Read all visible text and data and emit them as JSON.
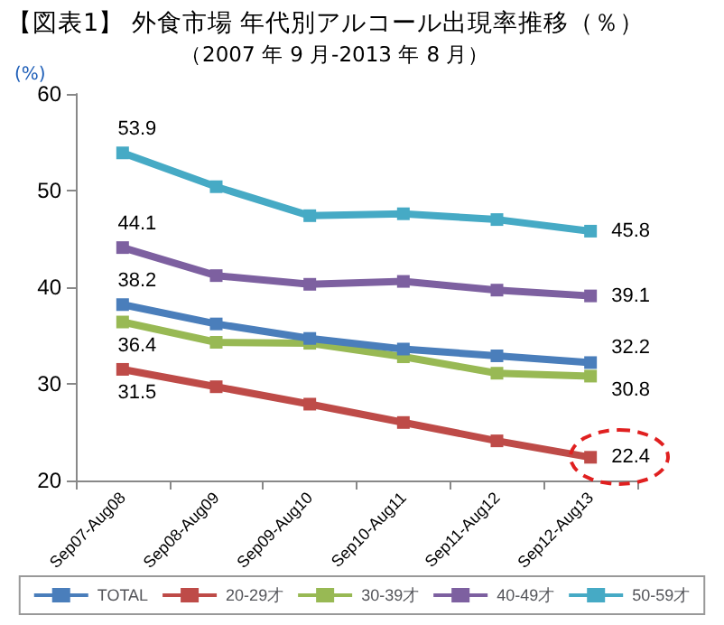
{
  "chart_data": {
    "type": "line",
    "title": "【図表1】 外食市場 年代別アルコール出現率推移（％）",
    "subtitle": "（2007 年 9 月-2013 年 8 月）",
    "ylabel": "(%)",
    "categories": [
      "Sep07-Aug08",
      "Sep08-Aug09",
      "Sep09-Aug10",
      "Sep10-Aug11",
      "Sep11-Aug12",
      "Sep12-Aug13"
    ],
    "series": [
      {
        "name": "TOTAL",
        "color": "#4a7ebb",
        "values": [
          38.2,
          36.2,
          34.7,
          33.6,
          32.9,
          32.2
        ],
        "value_labels": [
          "38.2",
          null,
          null,
          null,
          null,
          "32.2"
        ]
      },
      {
        "name": "20-29才",
        "color": "#be4b48",
        "values": [
          31.5,
          29.7,
          27.9,
          26.0,
          24.1,
          22.4
        ],
        "value_labels": [
          "31.5",
          null,
          null,
          null,
          null,
          "22.4"
        ]
      },
      {
        "name": "30-39才",
        "color": "#98b954",
        "values": [
          36.4,
          34.3,
          34.2,
          32.8,
          31.1,
          30.8
        ],
        "value_labels": [
          "36.4",
          null,
          null,
          null,
          null,
          "30.8"
        ]
      },
      {
        "name": "40-49才",
        "color": "#7d60a0",
        "values": [
          44.1,
          41.2,
          40.3,
          40.6,
          39.7,
          39.1
        ],
        "value_labels": [
          "44.1",
          null,
          null,
          null,
          null,
          "39.1"
        ]
      },
      {
        "name": "50-59才",
        "color": "#46aac5",
        "values": [
          53.9,
          50.4,
          47.4,
          47.6,
          47.0,
          45.8
        ],
        "value_labels": [
          "53.9",
          null,
          null,
          null,
          null,
          "45.8"
        ]
      }
    ],
    "ylim": [
      20,
      60
    ],
    "yticks": [
      20,
      30,
      40,
      50,
      60
    ],
    "grid": false,
    "legend": "bottom",
    "marker": "square",
    "line_style": "solid"
  }
}
